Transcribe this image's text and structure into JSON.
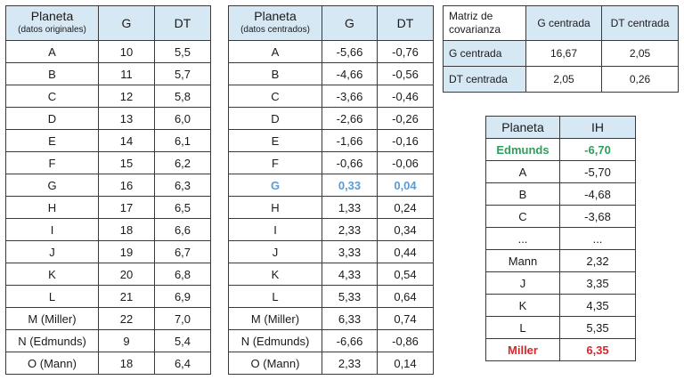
{
  "original": {
    "header": {
      "planeta": "Planeta",
      "sub": "(datos originales)",
      "g": "G",
      "dt": "DT"
    },
    "rows": [
      [
        "A",
        "10",
        "5,5"
      ],
      [
        "B",
        "11",
        "5,7"
      ],
      [
        "C",
        "12",
        "5,8"
      ],
      [
        "D",
        "13",
        "6,0"
      ],
      [
        "E",
        "14",
        "6,1"
      ],
      [
        "F",
        "15",
        "6,2"
      ],
      [
        "G",
        "16",
        "6,3"
      ],
      [
        "H",
        "17",
        "6,5"
      ],
      [
        "I",
        "18",
        "6,6"
      ],
      [
        "J",
        "19",
        "6,7"
      ],
      [
        "K",
        "20",
        "6,8"
      ],
      [
        "L",
        "21",
        "6,9"
      ],
      [
        "M (Miller)",
        "22",
        "7,0"
      ],
      [
        "N (Edmunds)",
        "9",
        "5,4"
      ],
      [
        "O (Mann)",
        "18",
        "6,4"
      ]
    ]
  },
  "centered": {
    "header": {
      "planeta": "Planeta",
      "sub": "(datos centrados)",
      "g": "G",
      "dt": "DT"
    },
    "highlight_row": 6,
    "highlight_color": "#5b9bd5",
    "rows": [
      [
        "A",
        "-5,66",
        "-0,76"
      ],
      [
        "B",
        "-4,66",
        "-0,56"
      ],
      [
        "C",
        "-3,66",
        "-0,46"
      ],
      [
        "D",
        "-2,66",
        "-0,26"
      ],
      [
        "E",
        "-1,66",
        "-0,16"
      ],
      [
        "F",
        "-0,66",
        "-0,06"
      ],
      [
        "G",
        "0,33",
        "0,04"
      ],
      [
        "H",
        "1,33",
        "0,24"
      ],
      [
        "I",
        "2,33",
        "0,34"
      ],
      [
        "J",
        "3,33",
        "0,44"
      ],
      [
        "K",
        "4,33",
        "0,54"
      ],
      [
        "L",
        "5,33",
        "0,64"
      ],
      [
        "M (Miller)",
        "6,33",
        "0,74"
      ],
      [
        "N (Edmunds)",
        "-6,66",
        "-0,86"
      ],
      [
        "O (Mann)",
        "2,33",
        "0,14"
      ]
    ]
  },
  "covariance": {
    "header": [
      "Matriz de covarianza",
      "G centrada",
      "DT centrada"
    ],
    "rows": [
      [
        "G centrada",
        "16,67",
        "2,05"
      ],
      [
        "DT centrada",
        "2,05",
        "0,26"
      ]
    ]
  },
  "ih": {
    "header": [
      "Planeta",
      "IH"
    ],
    "first_color": "#2e9e5b",
    "last_color": "#d9262b",
    "rows": [
      [
        "Edmunds",
        "-6,70"
      ],
      [
        "A",
        "-5,70"
      ],
      [
        "B",
        "-4,68"
      ],
      [
        "C",
        "-3,68"
      ],
      [
        "...",
        "..."
      ],
      [
        "Mann",
        "2,32"
      ],
      [
        "J",
        "3,35"
      ],
      [
        "K",
        "4,35"
      ],
      [
        "L",
        "5,35"
      ],
      [
        "Miller",
        "6,35"
      ]
    ]
  },
  "header_bg": "#d7e8f5"
}
